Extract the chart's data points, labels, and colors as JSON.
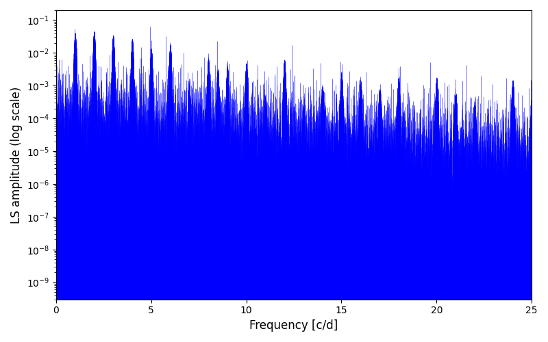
{
  "xlabel": "Frequency [c/d]",
  "ylabel": "LS amplitude (log scale)",
  "xlim": [
    0,
    25
  ],
  "ylim": [
    3e-10,
    0.2
  ],
  "line_color": "#0000ff",
  "line_width": 0.4,
  "background_color": "#ffffff",
  "freq_max": 25.0,
  "n_points": 8000,
  "seed": 7,
  "noise_floor_log": -4.0,
  "noise_spread_log": 0.8,
  "peak_freqs": [
    1.0,
    2.0,
    3.0,
    4.0,
    5.0,
    6.0,
    8.5
  ],
  "peak_amps": [
    0.04,
    0.035,
    0.03,
    0.015,
    0.012,
    0.005,
    0.003
  ],
  "null_count": 300,
  "null_depth_min": 3,
  "null_depth_max": 6,
  "envelope_decay": 0.05,
  "tick_fontsize": 10,
  "label_fontsize": 12
}
